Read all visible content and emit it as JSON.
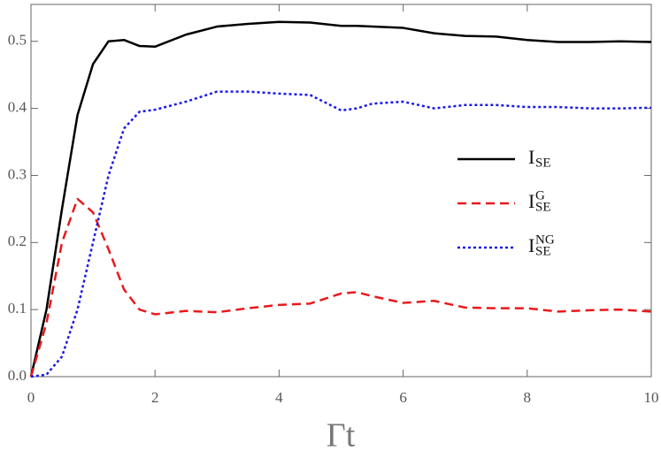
{
  "chart_data": {
    "type": "line",
    "x_label": "Γt",
    "x": [
      0,
      0.25,
      0.5,
      0.75,
      1,
      1.25,
      1.5,
      1.75,
      2,
      2.5,
      3,
      3.5,
      4,
      4.5,
      5,
      5.25,
      5.5,
      6,
      6.5,
      7,
      7.5,
      8,
      8.5,
      9,
      9.5,
      10
    ],
    "series": [
      {
        "name": "I",
        "subscript": "SE",
        "color": "#000000",
        "dash": "solid",
        "values": [
          0,
          0.1,
          0.25,
          0.39,
          0.466,
          0.5,
          0.502,
          0.493,
          0.492,
          0.51,
          0.522,
          0.526,
          0.529,
          0.528,
          0.523,
          0.523,
          0.522,
          0.52,
          0.512,
          0.508,
          0.507,
          0.502,
          0.499,
          0.499,
          0.5,
          0.499
        ]
      },
      {
        "name": "I",
        "subscript": "SE",
        "superscript": "G",
        "color": "#e8191c",
        "dash": "dashed",
        "values": [
          0,
          0.08,
          0.2,
          0.265,
          0.245,
          0.19,
          0.13,
          0.1,
          0.093,
          0.098,
          0.096,
          0.102,
          0.107,
          0.109,
          0.124,
          0.126,
          0.12,
          0.11,
          0.113,
          0.103,
          0.102,
          0.102,
          0.097,
          0.099,
          0.1,
          0.097
        ]
      },
      {
        "name": "I",
        "subscript": "SE",
        "superscript": "NG",
        "color": "#1a1ae6",
        "dash": "dotted",
        "values": [
          0,
          0.003,
          0.03,
          0.1,
          0.2,
          0.3,
          0.37,
          0.395,
          0.398,
          0.41,
          0.425,
          0.425,
          0.422,
          0.42,
          0.397,
          0.4,
          0.407,
          0.41,
          0.4,
          0.405,
          0.405,
          0.402,
          0.402,
          0.4,
          0.4,
          0.401
        ]
      }
    ],
    "xlim": [
      0,
      10
    ],
    "xticks": [
      0,
      2,
      4,
      6,
      8,
      10
    ],
    "ylim": [
      0,
      0.555
    ],
    "yticks": [
      {
        "value": 0,
        "label": "0.0"
      },
      0.1,
      0.2,
      0.3,
      0.4,
      0.5
    ],
    "legend": "right"
  }
}
